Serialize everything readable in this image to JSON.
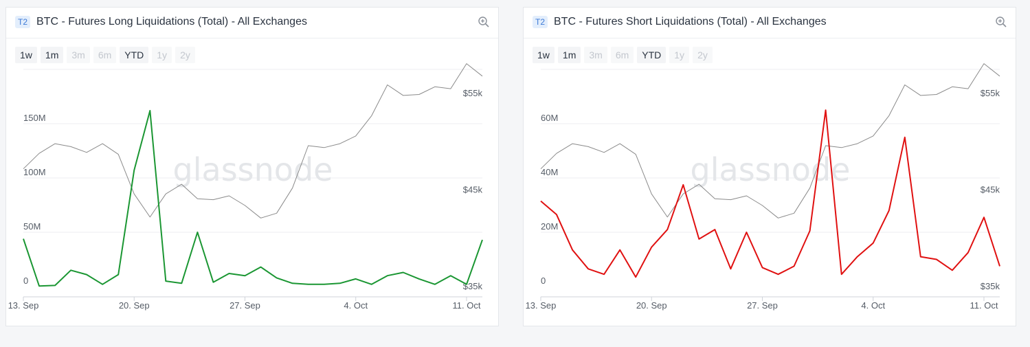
{
  "panels": [
    {
      "tier": "T2",
      "title": "BTC - Futures Long Liquidations (Total) - All Exchanges",
      "watermark": "glassnode",
      "range_buttons": [
        {
          "label": "1w",
          "enabled": true
        },
        {
          "label": "1m",
          "enabled": true
        },
        {
          "label": "3m",
          "enabled": false
        },
        {
          "label": "6m",
          "enabled": false
        },
        {
          "label": "YTD",
          "enabled": true
        },
        {
          "label": "1y",
          "enabled": false
        },
        {
          "label": "2y",
          "enabled": false
        }
      ],
      "icons": {
        "zoom": "zoom-in-icon"
      }
    },
    {
      "tier": "T2",
      "title": "BTC - Futures Short Liquidations (Total) - All Exchanges",
      "watermark": "glassnode",
      "range_buttons": [
        {
          "label": "1w",
          "enabled": true
        },
        {
          "label": "1m",
          "enabled": true
        },
        {
          "label": "3m",
          "enabled": false
        },
        {
          "label": "6m",
          "enabled": false
        },
        {
          "label": "YTD",
          "enabled": true
        },
        {
          "label": "1y",
          "enabled": false
        },
        {
          "label": "2y",
          "enabled": false
        }
      ],
      "icons": {
        "zoom": "zoom-in-icon"
      }
    }
  ],
  "chart_data": [
    {
      "type": "line",
      "title": "BTC - Futures Long Liquidations (Total) - All Exchanges",
      "x": [
        "Sep 13",
        "Sep 14",
        "Sep 15",
        "Sep 16",
        "Sep 17",
        "Sep 18",
        "Sep 19",
        "Sep 20",
        "Sep 21",
        "Sep 22",
        "Sep 23",
        "Sep 24",
        "Sep 25",
        "Sep 26",
        "Sep 27",
        "Sep 28",
        "Sep 29",
        "Sep 30",
        "Oct 1",
        "Oct 2",
        "Oct 3",
        "Oct 4",
        "Oct 5",
        "Oct 6",
        "Oct 7",
        "Oct 8",
        "Oct 9",
        "Oct 10",
        "Oct 11",
        "Oct 12"
      ],
      "x_tick_labels": [
        "13. Sep",
        "20. Sep",
        "27. Sep",
        "4. Oct",
        "11. Oct"
      ],
      "y_left_ticks": [
        {
          "value": 0,
          "label": "0"
        },
        {
          "value": 50,
          "label": "50M"
        },
        {
          "value": 100,
          "label": "100M"
        },
        {
          "value": 150,
          "label": "150M"
        }
      ],
      "y_right_ticks": [
        {
          "value": 35000,
          "label": "$35k"
        },
        {
          "value": 45000,
          "label": "$45k"
        },
        {
          "value": 55000,
          "label": "$55k"
        }
      ],
      "ylim_left": [
        0,
        200
      ],
      "ylim_right": [
        35000,
        57500
      ],
      "series": [
        {
          "axis": "left",
          "color": "#1a9632",
          "values": [
            44,
            0.5,
            1,
            15,
            11,
            2,
            11,
            107,
            162,
            5,
            3,
            50,
            4,
            12,
            10,
            18,
            8,
            3,
            2,
            2,
            3,
            7,
            2,
            10,
            13,
            7,
            2,
            10,
            2,
            43
          ]
        },
        {
          "axis": "right",
          "color": "#8a8a8a",
          "values": [
            47200,
            48800,
            49800,
            49500,
            48900,
            49800,
            48700,
            44600,
            42200,
            44600,
            45600,
            44100,
            44000,
            44400,
            43400,
            42100,
            42600,
            45200,
            49600,
            49400,
            49800,
            50600,
            52700,
            55900,
            54800,
            54900,
            55700,
            55500,
            58100,
            56800
          ]
        }
      ]
    },
    {
      "type": "line",
      "title": "BTC - Futures Short Liquidations (Total) - All Exchanges",
      "x": [
        "Sep 13",
        "Sep 14",
        "Sep 15",
        "Sep 16",
        "Sep 17",
        "Sep 18",
        "Sep 19",
        "Sep 20",
        "Sep 21",
        "Sep 22",
        "Sep 23",
        "Sep 24",
        "Sep 25",
        "Sep 26",
        "Sep 27",
        "Sep 28",
        "Sep 29",
        "Sep 30",
        "Oct 1",
        "Oct 2",
        "Oct 3",
        "Oct 4",
        "Oct 5",
        "Oct 6",
        "Oct 7",
        "Oct 8",
        "Oct 9",
        "Oct 10",
        "Oct 11",
        "Oct 12"
      ],
      "x_tick_labels": [
        "13. Sep",
        "20. Sep",
        "27. Sep",
        "4. Oct",
        "11. Oct"
      ],
      "y_left_ticks": [
        {
          "value": 0,
          "label": "0"
        },
        {
          "value": 20,
          "label": "20M"
        },
        {
          "value": 40,
          "label": "40M"
        },
        {
          "value": 60,
          "label": "60M"
        }
      ],
      "y_right_ticks": [
        {
          "value": 35000,
          "label": "$35k"
        },
        {
          "value": 45000,
          "label": "$45k"
        },
        {
          "value": 55000,
          "label": "$55k"
        }
      ],
      "ylim_left": [
        0,
        80
      ],
      "ylim_right": [
        35000,
        57500
      ],
      "series": [
        {
          "axis": "left",
          "color": "#e01010",
          "values": [
            31.5,
            26.5,
            13.5,
            6.5,
            4.5,
            13.5,
            3.5,
            14.5,
            21,
            37.5,
            17.5,
            21,
            6.5,
            20,
            7,
            4.5,
            7.5,
            20.5,
            65,
            4.5,
            11,
            16,
            28,
            55,
            11,
            10,
            6,
            12.5,
            25.5,
            7.5
          ]
        },
        {
          "axis": "right",
          "color": "#8a8a8a",
          "values": [
            47200,
            48800,
            49800,
            49500,
            48900,
            49800,
            48700,
            44600,
            42200,
            44600,
            45600,
            44100,
            44000,
            44400,
            43400,
            42100,
            42600,
            45200,
            49600,
            49400,
            49800,
            50600,
            52700,
            55900,
            54800,
            54900,
            55700,
            55500,
            58100,
            56800
          ]
        }
      ]
    }
  ]
}
